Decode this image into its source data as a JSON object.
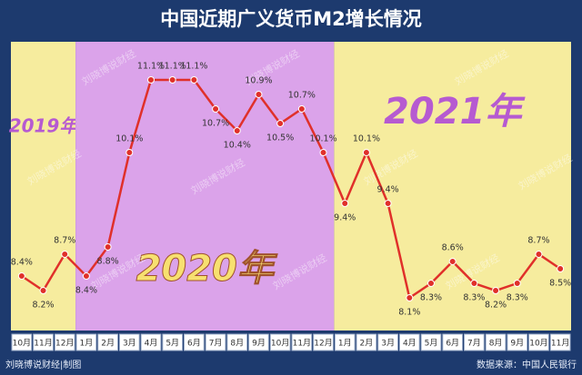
{
  "chart_data": {
    "type": "line",
    "title": "中国近期广义货币M2增长情况",
    "categories": [
      "10月",
      "11月",
      "12月",
      "1月",
      "2月",
      "3月",
      "4月",
      "5月",
      "6月",
      "7月",
      "8月",
      "9月",
      "10月",
      "11月",
      "12月",
      "1月",
      "2月",
      "3月",
      "4月",
      "5月",
      "6月",
      "7月",
      "8月",
      "9月",
      "10月",
      "11月"
    ],
    "series": [
      {
        "name": "M2",
        "color": "#e0302a",
        "values": [
          8.4,
          8.2,
          8.7,
          8.4,
          8.8,
          10.1,
          11.1,
          11.1,
          11.1,
          10.7,
          10.4,
          10.9,
          10.5,
          10.7,
          10.1,
          9.4,
          10.1,
          9.4,
          8.1,
          8.3,
          8.6,
          8.3,
          8.2,
          8.3,
          8.7,
          8.5
        ],
        "value_labels": [
          "8.4%",
          "8.2%",
          "8.7%",
          "8.4%",
          "8.8%",
          "10.1%",
          "11.1%",
          "11.1%",
          "11.1%",
          "10.7%",
          "10.4%",
          "10.9%",
          "10.5%",
          "10.7%",
          "10.1%",
          "9.4%",
          "10.1%",
          "9.4%",
          "8.1%",
          "8.3%",
          "8.6%",
          "8.3%",
          "8.2%",
          "8.3%",
          "8.7%",
          "8.5%"
        ]
      }
    ],
    "annotations": [
      "2019年",
      "2020年",
      "2021年"
    ],
    "region_colors": [
      "#f6ec9e",
      "#dba3ea",
      "#f6ec9e"
    ],
    "watermark": "刘晓博说财经",
    "footer_left": "刘晓博说财经|制图",
    "source": "数据来源：中国人民银行"
  }
}
